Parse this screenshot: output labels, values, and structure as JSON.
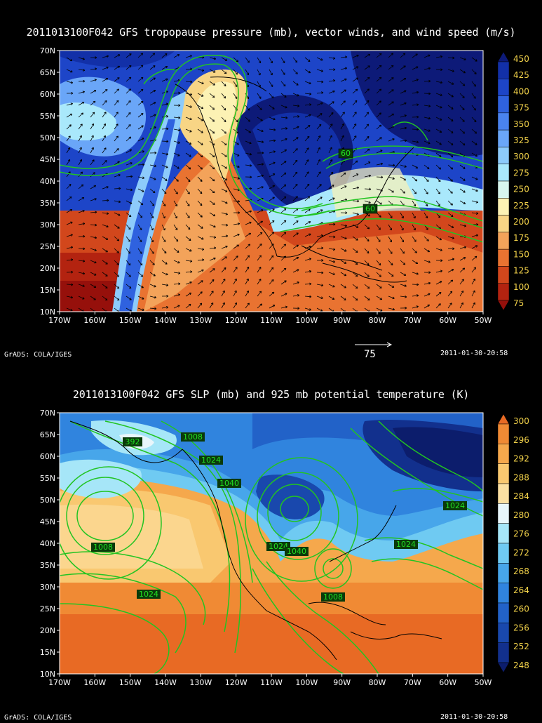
{
  "panel1": {
    "title": "2011013100F042 GFS tropopause pressure (mb), vector winds, and wind speed (m/s)",
    "lat_labels": [
      "70N",
      "65N",
      "60N",
      "55N",
      "50N",
      "45N",
      "40N",
      "35N",
      "30N",
      "25N",
      "20N",
      "15N",
      "10N"
    ],
    "lon_labels": [
      "170W",
      "160W",
      "150W",
      "140W",
      "130W",
      "120W",
      "110W",
      "100W",
      "90W",
      "80W",
      "70W",
      "60W",
      "50W"
    ],
    "colorbar": {
      "labels": [
        "450",
        "425",
        "400",
        "375",
        "350",
        "325",
        "300",
        "275",
        "250",
        "225",
        "200",
        "175",
        "150",
        "125",
        "100",
        "75"
      ],
      "colors": [
        "#0d1a78",
        "#1230a8",
        "#1d45c8",
        "#2f62df",
        "#4a83ef",
        "#6aa6f8",
        "#8dcbfb",
        "#a9e8fb",
        "#d8f6ee",
        "#fcf2b4",
        "#f8d585",
        "#f3a35a",
        "#e97331",
        "#d2471c",
        "#b32310",
        "#96100b"
      ]
    },
    "contour_labels": [
      "60",
      "60"
    ],
    "vector_reference": {
      "value": "75"
    },
    "footer_left": "GrADS: COLA/IGES",
    "footer_right": "2011-01-30-20:58"
  },
  "panel2": {
    "title": "2011013100F042 GFS SLP (mb) and 925 mb potential temperature (K)",
    "lat_labels": [
      "70N",
      "65N",
      "60N",
      "55N",
      "50N",
      "45N",
      "40N",
      "35N",
      "30N",
      "25N",
      "20N",
      "15N",
      "10N"
    ],
    "lon_labels": [
      "170W",
      "160W",
      "150W",
      "140W",
      "130W",
      "120W",
      "110W",
      "100W",
      "90W",
      "80W",
      "70W",
      "60W",
      "50W"
    ],
    "colorbar": {
      "labels": [
        "300",
        "296",
        "292",
        "288",
        "284",
        "280",
        "276",
        "272",
        "268",
        "264",
        "260",
        "256",
        "252",
        "248"
      ],
      "colors": [
        "#e86a24",
        "#f08a34",
        "#f5a84c",
        "#f9c870",
        "#fbe0a2",
        "#e8f6fb",
        "#a6e6f8",
        "#6fcaf2",
        "#47a6ea",
        "#3084de",
        "#2262c8",
        "#1948ad",
        "#12308d",
        "#0c1d6c"
      ]
    },
    "contour_labels": [
      "392",
      "1008",
      "1024",
      "1040",
      "1024",
      "1040",
      "1024",
      "1024",
      "1008",
      "1024",
      "1008"
    ],
    "footer_left": "GrADS: COLA/IGES",
    "footer_right": "2011-01-30-20:58"
  }
}
